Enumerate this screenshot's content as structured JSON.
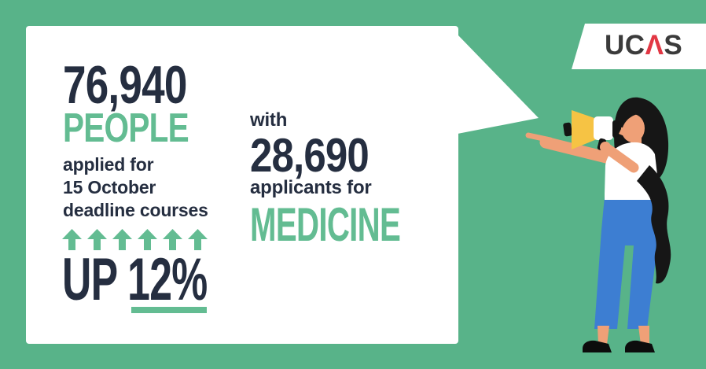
{
  "colors": {
    "background": "#58b389",
    "card": "#ffffff",
    "navy": "#252e40",
    "accent_green": "#63bc92",
    "logo_red": "#e23744",
    "logo_dark": "#3b3b3b",
    "skin": "#efa077",
    "jeans_blue": "#3d7ed2",
    "megaphone_yellow": "#f6c344",
    "hair_black": "#161616"
  },
  "logo": {
    "part_uc": "UC",
    "part_a": "Λ",
    "part_s": "S"
  },
  "card": {
    "stat_applicants": {
      "number": "76,940",
      "label": "PEOPLE",
      "description_lines": [
        "applied for",
        "15 October",
        "deadline courses"
      ],
      "arrow_count": 6,
      "change": "UP 12%"
    },
    "stat_medicine": {
      "prefix": "with",
      "number": "28,690",
      "suffix": "applicants for",
      "subject": "MEDICINE"
    }
  }
}
